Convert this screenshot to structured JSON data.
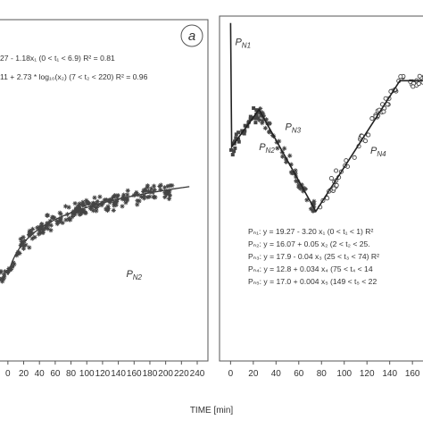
{
  "figure": {
    "xlabel": "TIME [min]"
  },
  "chart_data": [
    {
      "type": "scatter",
      "panel_label": "a",
      "x_tick_labels": [
        "0",
        "20",
        "40",
        "60",
        "80",
        "100",
        "120",
        "140",
        "160",
        "180",
        "200",
        "220",
        "240"
      ],
      "xlim": [
        -10,
        240
      ],
      "ylim": [
        0,
        1
      ],
      "equations": [
        "27 - 1.18x₁ (0 < t₁ < 6.9) R² = 0.81",
        "11 + 2.73 * log₁₀(x₂) (7 < t₂ < 220) R² = 0.96"
      ],
      "phase_labels": [
        {
          "label": "P",
          "sub": "N2",
          "x": 150,
          "y": 0.24
        }
      ],
      "fit": {
        "segment1": {
          "x": [
            -10,
            7
          ],
          "y": [
            0.6,
            0.56
          ]
        },
        "log_curve": {
          "x0": 0,
          "x1": 220,
          "y0": 0.245,
          "y1": 0.505,
          "shape_coef": 0.12
        }
      },
      "scatter": {
        "n": 220,
        "x_range": [
          -10,
          210
        ],
        "noise_y": 0.035,
        "marker": "*"
      }
    },
    {
      "type": "scatter",
      "x_tick_labels": [
        "0",
        "20",
        "40",
        "60",
        "80",
        "100",
        "120",
        "140",
        "160"
      ],
      "xlim": [
        -5,
        185
      ],
      "ylim": [
        0,
        1
      ],
      "equations": [
        "Pₙ₁: y = 19.27 - 3.20 x₁ (0 < t₁ < 1) R²",
        "Pₙ₂: y = 16.07 + 0.05 x₂ (2 < t₂ < 25.",
        "Pₙ₃: y = 17.9 - 0.04 x₃ (25 < t₃ < 74) R²",
        "Pₙ₄: y = 12.8 + 0.034 x₄ (75 < t₄ < 14",
        "Pₙ₅: y = 17.0 + 0.004 x₅ (149 < t₅ < 22"
      ],
      "phase_labels": [
        {
          "label": "P",
          "sub": "N1",
          "x": 4,
          "y": 0.92
        },
        {
          "label": "P",
          "sub": "N2",
          "x": 25,
          "y": 0.61
        },
        {
          "label": "P",
          "sub": "N3",
          "x": 48,
          "y": 0.67
        },
        {
          "label": "P",
          "sub": "N4",
          "x": 123,
          "y": 0.6
        }
      ],
      "fit_line": [
        {
          "x": 0,
          "y": 0.985
        },
        {
          "x": 1,
          "y": 0.62
        },
        {
          "x": 25,
          "y": 0.73
        },
        {
          "x": 75,
          "y": 0.43
        },
        {
          "x": 149,
          "y": 0.815
        },
        {
          "x": 185,
          "y": 0.815
        }
      ],
      "scatter_series": [
        {
          "name": "",
          "x_range": [
            0,
            25
          ],
          "marker": "square",
          "n": 34
        },
        {
          "name": "",
          "x_range": [
            25,
            74
          ],
          "marker": "*",
          "n": 55
        },
        {
          "name": "",
          "x_range": [
            75,
            185
          ],
          "marker": "circle",
          "n": 80
        }
      ],
      "noise_y": 0.035
    }
  ]
}
